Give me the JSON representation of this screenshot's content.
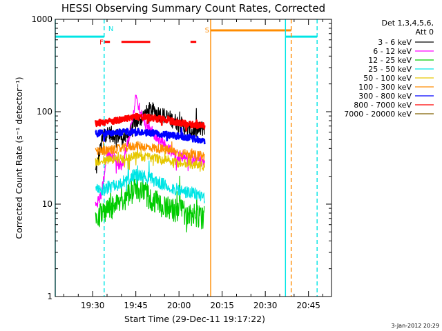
{
  "chart_data": {
    "type": "line",
    "title": "HESSI Observing Summary Count Rates, Corrected",
    "xlabel": "Start Time (29-Dec-11 19:17:22)",
    "ylabel": "Corrected Count Rate (s⁻¹ detector⁻¹)",
    "y_scale": "log",
    "ylim": [
      1,
      1000
    ],
    "xlim": [
      "19:17",
      "20:53"
    ],
    "x_ticks": [
      "19:30",
      "19:45",
      "20:00",
      "20:15",
      "20:30",
      "20:45"
    ],
    "y_ticks": [
      "1",
      "10",
      "100",
      "1000"
    ],
    "legend_header": [
      "Det 1,3,4,5,6,",
      "Att 0"
    ],
    "legend_position": "outside-right",
    "timestamp": "3-Jan-2012 20:29",
    "series": [
      {
        "name": "3 - 6 keV",
        "color": "#000000",
        "x": [
          "19:31",
          "19:34",
          "19:38",
          "19:42",
          "19:45",
          "19:50",
          "19:55",
          "20:00",
          "20:05",
          "20:09"
        ],
        "y": [
          22,
          60,
          55,
          52,
          75,
          105,
          90,
          75,
          60,
          68
        ]
      },
      {
        "name": "6 - 12 keV",
        "color": "#ff00ff",
        "x": [
          "19:31",
          "19:33",
          "19:35",
          "19:37",
          "19:40",
          "19:43",
          "19:45",
          "19:48",
          "19:52",
          "19:56",
          "20:00",
          "20:04",
          "20:09"
        ],
        "y": [
          10,
          12,
          35,
          33,
          25,
          60,
          140,
          75,
          55,
          40,
          32,
          30,
          28
        ]
      },
      {
        "name": "12 - 25 keV",
        "color": "#00cc00",
        "x": [
          "19:31",
          "19:35",
          "19:39",
          "19:42",
          "19:45",
          "19:48",
          "19:52",
          "19:56",
          "20:00",
          "20:05",
          "20:09"
        ],
        "y": [
          7,
          8.5,
          10,
          12,
          15,
          13,
          10.5,
          9,
          8.5,
          7.5,
          7
        ]
      },
      {
        "name": "25 - 50 keV",
        "color": "#00e5e5",
        "x": [
          "19:31",
          "19:35",
          "19:40",
          "19:45",
          "19:50",
          "19:55",
          "20:00",
          "20:05",
          "20:09"
        ],
        "y": [
          14,
          15,
          17,
          21,
          19,
          16,
          14,
          13,
          12
        ]
      },
      {
        "name": "50 - 100 keV",
        "color": "#e6c800",
        "x": [
          "19:31",
          "19:35",
          "19:40",
          "19:45",
          "19:50",
          "19:55",
          "20:00",
          "20:05",
          "20:09"
        ],
        "y": [
          29,
          30,
          31,
          33,
          32,
          30,
          28,
          27,
          26
        ]
      },
      {
        "name": "100 - 300 keV",
        "color": "#ff8c00",
        "x": [
          "19:31",
          "19:35",
          "19:40",
          "19:45",
          "19:50",
          "19:55",
          "20:00",
          "20:05",
          "20:09"
        ],
        "y": [
          37,
          38,
          40,
          43,
          41,
          39,
          36,
          34,
          33
        ]
      },
      {
        "name": "300 - 800 keV",
        "color": "#0000ff",
        "x": [
          "19:31",
          "19:35",
          "19:40",
          "19:45",
          "19:50",
          "19:55",
          "20:00",
          "20:05",
          "20:09"
        ],
        "y": [
          58,
          59,
          60,
          61,
          59,
          57,
          54,
          51,
          48
        ]
      },
      {
        "name": "800 - 7000 keV",
        "color": "#ff0000",
        "x": [
          "19:31",
          "19:35",
          "19:40",
          "19:45",
          "19:50",
          "19:55",
          "20:00",
          "20:05",
          "20:09"
        ],
        "y": [
          75,
          78,
          82,
          88,
          86,
          82,
          76,
          72,
          70
        ]
      },
      {
        "name": "7000 - 20000 keV",
        "color": "#806000",
        "x": [],
        "y": []
      }
    ],
    "flags": [
      {
        "label": "F",
        "color": "#ff0000",
        "y": 570,
        "segments": [
          [
            "19:34",
            "19:36"
          ],
          [
            "19:40",
            "19:50"
          ],
          [
            "20:04",
            "20:06"
          ]
        ]
      },
      {
        "label": "N",
        "color": "#00e5e5",
        "y": 650,
        "segments": [
          [
            "19:17",
            "19:34"
          ],
          [
            "20:37",
            "20:48"
          ]
        ]
      },
      {
        "label": "S",
        "color": "#ff8c00",
        "y": 760,
        "segments": [
          [
            "20:11",
            "20:39"
          ]
        ]
      }
    ],
    "vertical_markers": [
      {
        "x": "19:17",
        "color": "#00e5e5",
        "style": "solid"
      },
      {
        "x": "19:34",
        "color": "#00e5e5",
        "style": "dashed"
      },
      {
        "x": "20:11",
        "color": "#ff8c00",
        "style": "solid"
      },
      {
        "x": "20:37",
        "color": "#00e5e5",
        "style": "solid"
      },
      {
        "x": "20:39",
        "color": "#ff8c00",
        "style": "dashed"
      },
      {
        "x": "20:48",
        "color": "#00e5e5",
        "style": "dashed"
      }
    ]
  }
}
